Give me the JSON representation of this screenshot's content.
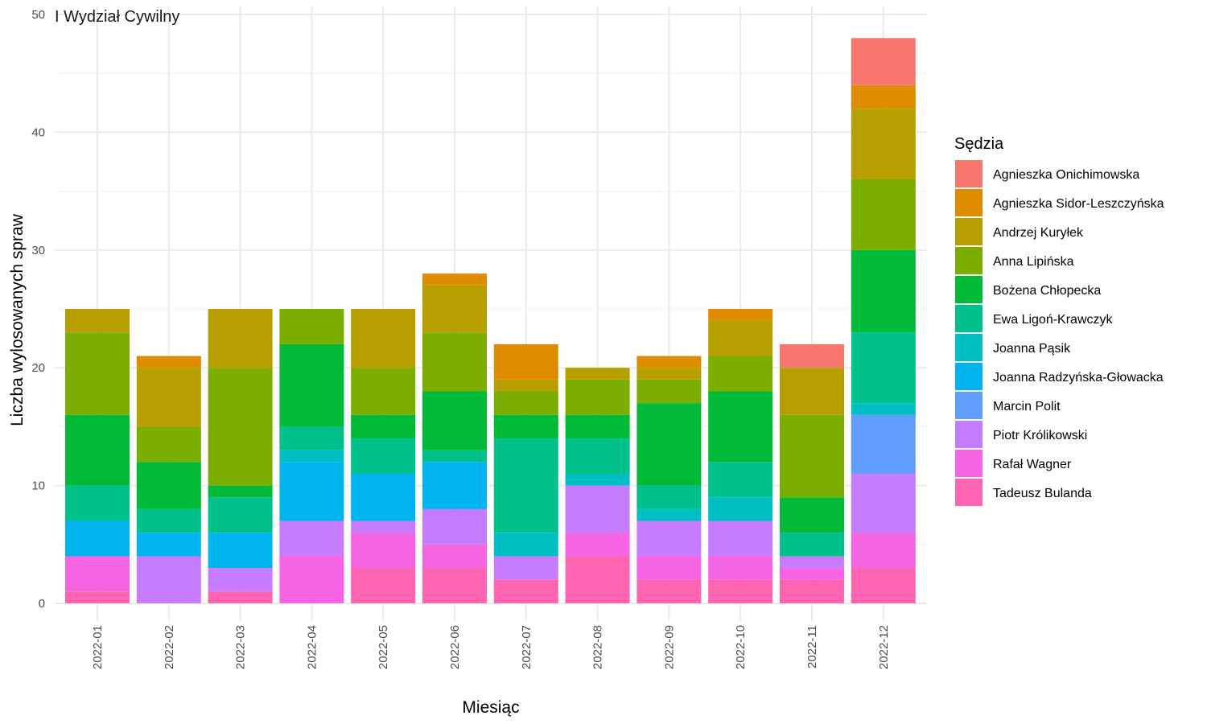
{
  "chart_data": {
    "type": "bar",
    "stacked": true,
    "title": "I Wydział Cywilny",
    "xlabel": "Miesiąc",
    "ylabel": "Liczba wylosowanych spraw",
    "ylim": [
      0,
      50
    ],
    "yticks": [
      0,
      10,
      20,
      30,
      40,
      50
    ],
    "grid": true,
    "legend_title": "Sędzia",
    "legend_position": "right",
    "categories": [
      "2022-01",
      "2022-02",
      "2022-03",
      "2022-04",
      "2022-05",
      "2022-06",
      "2022-07",
      "2022-08",
      "2022-09",
      "2022-10",
      "2022-11",
      "2022-12"
    ],
    "series": [
      {
        "name": "Agnieszka Onichimowska",
        "color": "#F8766D",
        "values": [
          0,
          0,
          0,
          0,
          0,
          0,
          0,
          0,
          0,
          0,
          2,
          4
        ]
      },
      {
        "name": "Agnieszka Sidor-Leszczyńska",
        "color": "#DE8C00",
        "values": [
          0,
          1,
          0,
          0,
          0,
          1,
          3,
          0,
          1,
          1,
          0,
          2
        ]
      },
      {
        "name": "Andrzej Kuryłek",
        "color": "#B79F00",
        "values": [
          2,
          5,
          5,
          0,
          5,
          4,
          1,
          1,
          1,
          3,
          4,
          6
        ]
      },
      {
        "name": "Anna Lipińska",
        "color": "#7CAE00",
        "values": [
          7,
          3,
          10,
          3,
          4,
          5,
          2,
          3,
          2,
          3,
          7,
          6
        ]
      },
      {
        "name": "Bożena Chłopecka",
        "color": "#00BA38",
        "values": [
          6,
          4,
          1,
          7,
          2,
          5,
          2,
          2,
          7,
          6,
          3,
          7
        ]
      },
      {
        "name": "Ewa Ligoń-Krawczyk",
        "color": "#00C08B",
        "values": [
          3,
          2,
          3,
          2,
          3,
          1,
          8,
          3,
          2,
          3,
          2,
          6
        ]
      },
      {
        "name": "Joanna Pąsik",
        "color": "#00BFC4",
        "values": [
          0,
          0,
          0,
          1,
          0,
          0,
          2,
          1,
          1,
          2,
          0,
          1
        ]
      },
      {
        "name": "Joanna Radzyńska-Głowacka",
        "color": "#00B4F0",
        "values": [
          3,
          2,
          3,
          5,
          4,
          4,
          0,
          0,
          0,
          0,
          0,
          0
        ]
      },
      {
        "name": "Marcin Polit",
        "color": "#619CFF",
        "values": [
          0,
          0,
          0,
          0,
          0,
          0,
          0,
          0,
          0,
          0,
          0,
          5
        ]
      },
      {
        "name": "Piotr Królikowski",
        "color": "#C77CFF",
        "values": [
          0,
          4,
          2,
          3,
          1,
          3,
          2,
          4,
          3,
          3,
          1,
          5
        ]
      },
      {
        "name": "Rafał Wagner",
        "color": "#F564E3",
        "values": [
          3,
          0,
          0,
          4,
          3,
          2,
          0,
          2,
          2,
          2,
          1,
          3
        ]
      },
      {
        "name": "Tadeusz Bulanda",
        "color": "#FF64B0",
        "values": [
          1,
          0,
          1,
          0,
          3,
          3,
          2,
          4,
          2,
          2,
          2,
          3
        ]
      }
    ]
  }
}
